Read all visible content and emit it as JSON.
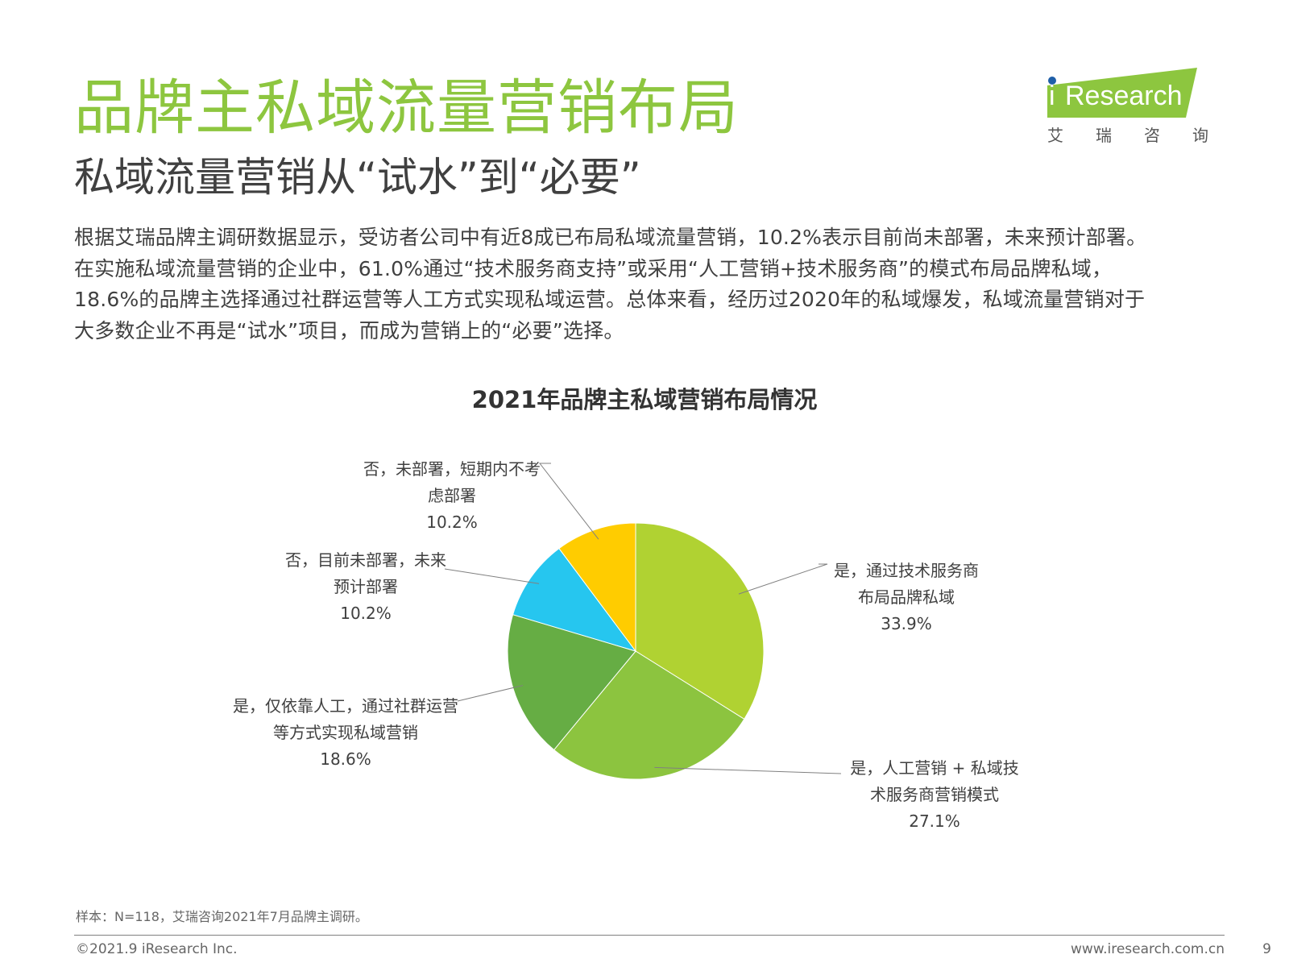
{
  "header": {
    "title": "品牌主私域流量营销布局",
    "subtitle": "私域流量营销从“试水”到“必要”"
  },
  "logo": {
    "brand": "iResearch",
    "brand_i": "i",
    "brand_rest": "Research",
    "chars": [
      "艾",
      "瑞",
      "咨",
      "询"
    ],
    "color": "#8dc63f",
    "dot_color": "#1f5fa8"
  },
  "body": {
    "lines": [
      "根据艾瑞品牌主调研数据显示，受访者公司中有近8成已布局私域流量营销，10.2%表示目前尚未部署，未来预计部署。",
      "在实施私域流量营销的企业中，61.0%通过“技术服务商支持”或采用“人工营销+技术服务商”的模式布局品牌私域，",
      "18.6%的品牌主选择通过社群运营等人工方式实现私域运营。总体来看，经历过2020年的私域爆发，私域流量营销对于",
      "大多数企业不再是“试水”项目，而成为营销上的“必要”选择。"
    ]
  },
  "chart_data": {
    "type": "pie",
    "title": "2021年品牌主私域营销布局情况",
    "slices": [
      {
        "label_lines": [
          "是，通过技术服务商",
          "布局品牌私域"
        ],
        "value": 33.9,
        "value_text": "33.9%",
        "color": "#b0d232"
      },
      {
        "label_lines": [
          "是，人工营销 + 私域技",
          "术服务商营销模式"
        ],
        "value": 27.1,
        "value_text": "27.1%",
        "color": "#8cc43f"
      },
      {
        "label_lines": [
          "是，仅依靠人工，通过社群运营",
          "等方式实现私域营销"
        ],
        "value": 18.6,
        "value_text": "18.6%",
        "color": "#66ad44"
      },
      {
        "label_lines": [
          "否，目前未部署，未来",
          "预计部署"
        ],
        "value": 10.2,
        "value_text": "10.2%",
        "color": "#26c6ef"
      },
      {
        "label_lines": [
          "否，未部署，短期内不考",
          "虑部署"
        ],
        "value": 10.2,
        "value_text": "10.2%",
        "color": "#ffcc00"
      }
    ],
    "start_angle_deg": 0,
    "direction": "clockwise",
    "leader_color": "#808080"
  },
  "footer": {
    "source": "样本：N=118，艾瑞咨询2021年7月品牌主调研。",
    "copyright": "©2021.9 iResearch Inc.",
    "website": "www.iresearch.com.cn",
    "page": "9"
  }
}
